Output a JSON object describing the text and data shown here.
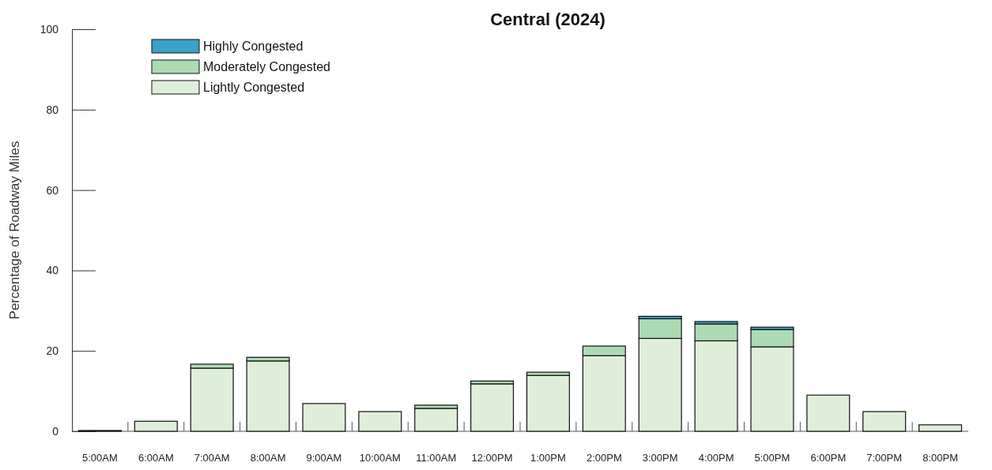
{
  "chart_data": {
    "type": "bar",
    "title": "Central (2024)",
    "ylabel": "Percentage of Roadway Miles",
    "stacked": true,
    "categories": [
      "5:00AM",
      "6:00AM",
      "7:00AM",
      "8:00AM",
      "9:00AM",
      "10:00AM",
      "11:00AM",
      "12:00PM",
      "1:00PM",
      "2:00PM",
      "3:00PM",
      "4:00PM",
      "5:00PM",
      "6:00PM",
      "7:00PM",
      "8:00PM"
    ],
    "series": [
      {
        "name": "Lightly Congested",
        "color": "#dfeed9",
        "values": [
          0.2,
          2.5,
          15.7,
          17.5,
          6.9,
          4.9,
          5.7,
          11.8,
          13.9,
          18.8,
          23.1,
          22.5,
          21.0,
          9.0,
          4.9,
          1.6
        ]
      },
      {
        "name": "Moderately Congested",
        "color": "#acdab3",
        "values": [
          0,
          0,
          1.0,
          0.9,
          0,
          0,
          0.8,
          0.7,
          0.8,
          2.4,
          4.9,
          4.2,
          4.3,
          0,
          0,
          0
        ]
      },
      {
        "name": "Highly Congested",
        "color": "#3aa1c8",
        "values": [
          0,
          0,
          0,
          0,
          0,
          0,
          0,
          0,
          0,
          0,
          0.6,
          0.6,
          0.6,
          0,
          0,
          0
        ]
      }
    ],
    "ylim": [
      0,
      100
    ],
    "yticks": [
      0,
      20,
      40,
      60,
      80,
      100
    ],
    "grid": false,
    "legend": "top left"
  }
}
